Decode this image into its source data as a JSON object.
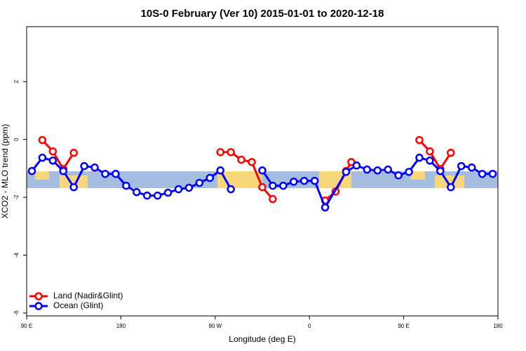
{
  "chart_data": {
    "type": "line",
    "title": "10S-0 February (Ver 10)   2015-01-01 to 2020-12-18",
    "x_label": "Longitude (deg E)",
    "y_label": "XCO2 - MLO trend (ppm)",
    "xlim": [
      90,
      540
    ],
    "ylim": [
      -6.1,
      3.9
    ],
    "xticks": [
      {
        "value": 90,
        "label": "90 E"
      },
      180,
      {
        "value": 270,
        "label": "90 W"
      },
      {
        "value": 360,
        "label": "0"
      },
      {
        "value": 450,
        "label": "90 E"
      },
      {
        "value": 540,
        "label": "180"
      }
    ],
    "yticks": [
      -6,
      -4,
      -2,
      0,
      2
    ],
    "grid": false,
    "legend": "bottom-left",
    "series": [
      {
        "name": "Land (Nadir&Glint)",
        "color": "#ff0000",
        "x": [
          105,
          115,
          125,
          135,
          145,
          275,
          285,
          295,
          305,
          315,
          325,
          335,
          375,
          385,
          395,
          400,
          410,
          465,
          475,
          485,
          495
        ],
        "values": [
          -0.02,
          -0.41,
          -1.02,
          -0.46,
          null,
          -0.44,
          -0.44,
          -0.7,
          -0.78,
          -1.65,
          -2.06,
          null,
          -2.11,
          -1.8,
          -1.09,
          -0.78,
          null,
          -0.02,
          -0.41,
          -1.02,
          -0.46
        ]
      },
      {
        "name": "Ocean (Glint)",
        "color": "#0000ff",
        "x": [
          95,
          105,
          115,
          125,
          135,
          145,
          155,
          165,
          175,
          185,
          195,
          205,
          215,
          225,
          235,
          245,
          255,
          265,
          275,
          285,
          295,
          315,
          325,
          335,
          345,
          355,
          365,
          375,
          395,
          405,
          415,
          425,
          435,
          445,
          455,
          465,
          475,
          485,
          495,
          505,
          515,
          525,
          535
        ],
        "values": [
          -1.09,
          -0.63,
          -0.73,
          -1.09,
          -1.65,
          -0.92,
          -0.97,
          -1.19,
          -1.19,
          -1.6,
          -1.82,
          -1.94,
          -1.94,
          -1.84,
          -1.72,
          -1.67,
          -1.5,
          -1.33,
          -1.07,
          -1.72,
          null,
          -1.07,
          -1.6,
          -1.6,
          -1.46,
          -1.43,
          -1.43,
          -2.35,
          -1.12,
          -0.9,
          -1.04,
          -1.07,
          -1.04,
          -1.24,
          -1.12,
          -0.63,
          -0.73,
          -1.09,
          -1.65,
          -0.92,
          -0.97,
          -1.19,
          -1.19
        ]
      }
    ]
  }
}
